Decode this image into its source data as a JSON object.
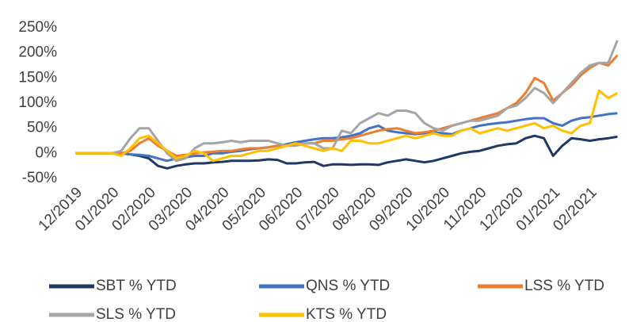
{
  "chart_data": {
    "type": "line",
    "categories": [
      "12/2019",
      null,
      null,
      null,
      "01/2020",
      null,
      null,
      null,
      "02/2020",
      null,
      null,
      null,
      "03/2020",
      null,
      null,
      null,
      "04/2020",
      null,
      null,
      null,
      "05/2020",
      null,
      null,
      null,
      "06/2020",
      null,
      null,
      null,
      "07/2020",
      null,
      null,
      null,
      "08/2020",
      null,
      null,
      null,
      "09/2020",
      null,
      null,
      null,
      "10/2020",
      null,
      null,
      null,
      "11/2020",
      null,
      null,
      null,
      "12/2020",
      null,
      null,
      null,
      "01/2021",
      null,
      null,
      null,
      "02/2021",
      null,
      null,
      null
    ],
    "ylim": [
      -50,
      250
    ],
    "yticks": [
      {
        "value": -50,
        "label": "-50%"
      },
      {
        "value": 0,
        "label": "0%"
      },
      {
        "value": 50,
        "label": "50%"
      },
      {
        "value": 100,
        "label": "100%"
      },
      {
        "value": 150,
        "label": "150%"
      },
      {
        "value": 200,
        "label": "200%"
      },
      {
        "value": 250,
        "label": "250%"
      }
    ],
    "grid": false,
    "legend": "bottom",
    "series": [
      {
        "name": "SBT % YTD",
        "color": "#203864",
        "values": [
          0,
          0,
          0,
          0,
          0,
          0,
          -2,
          -5,
          -10,
          -25,
          -30,
          -25,
          -22,
          -20,
          -20,
          -18,
          -17,
          -15,
          -15,
          -15,
          -14,
          -12,
          -13,
          -20,
          -20,
          -18,
          -17,
          -25,
          -22,
          -22,
          -23,
          -22,
          -22,
          -23,
          -18,
          -15,
          -12,
          -15,
          -18,
          -15,
          -10,
          -5,
          0,
          3,
          5,
          10,
          15,
          18,
          20,
          30,
          35,
          30,
          -5,
          15,
          30,
          28,
          25,
          28,
          30,
          33
        ]
      },
      {
        "name": "QNS % YTD",
        "color": "#4472c4",
        "values": [
          0,
          0,
          0,
          0,
          0,
          0,
          -2,
          -3,
          -5,
          -10,
          -15,
          -10,
          -8,
          -5,
          -5,
          0,
          0,
          3,
          5,
          8,
          10,
          12,
          15,
          18,
          22,
          25,
          28,
          30,
          30,
          32,
          35,
          40,
          50,
          55,
          45,
          42,
          40,
          38,
          40,
          42,
          40,
          38,
          45,
          50,
          55,
          58,
          60,
          62,
          65,
          68,
          70,
          70,
          60,
          55,
          65,
          70,
          72,
          75,
          78,
          80
        ]
      },
      {
        "name": "LSS % YTD",
        "color": "#ed7d31",
        "values": [
          0,
          0,
          0,
          0,
          0,
          0,
          5,
          20,
          30,
          15,
          5,
          -5,
          -3,
          0,
          2,
          3,
          5,
          5,
          8,
          10,
          10,
          12,
          15,
          15,
          18,
          20,
          20,
          25,
          25,
          28,
          30,
          35,
          40,
          45,
          48,
          50,
          45,
          40,
          42,
          45,
          50,
          55,
          60,
          65,
          70,
          75,
          80,
          90,
          100,
          120,
          150,
          140,
          105,
          120,
          135,
          155,
          170,
          180,
          175,
          195
        ]
      },
      {
        "name": "SLS % YTD",
        "color": "#a5a5a5",
        "values": [
          0,
          0,
          0,
          0,
          0,
          5,
          30,
          50,
          50,
          25,
          0,
          -15,
          -10,
          10,
          20,
          20,
          22,
          25,
          22,
          25,
          25,
          25,
          20,
          15,
          15,
          20,
          20,
          10,
          10,
          45,
          40,
          60,
          70,
          80,
          75,
          85,
          85,
          80,
          60,
          50,
          45,
          55,
          60,
          65,
          65,
          70,
          75,
          90,
          95,
          110,
          130,
          120,
          100,
          120,
          140,
          160,
          175,
          180,
          180,
          225
        ]
      },
      {
        "name": "KTS % YTD",
        "color": "#ffc000",
        "values": [
          0,
          0,
          0,
          0,
          0,
          -5,
          10,
          30,
          35,
          20,
          5,
          -10,
          -5,
          5,
          0,
          -15,
          -10,
          -5,
          -5,
          0,
          5,
          5,
          10,
          15,
          20,
          15,
          10,
          5,
          10,
          5,
          25,
          25,
          20,
          20,
          25,
          30,
          35,
          30,
          35,
          40,
          35,
          35,
          45,
          50,
          40,
          45,
          50,
          45,
          50,
          55,
          60,
          50,
          55,
          45,
          40,
          55,
          60,
          125,
          110,
          120
        ]
      }
    ]
  }
}
